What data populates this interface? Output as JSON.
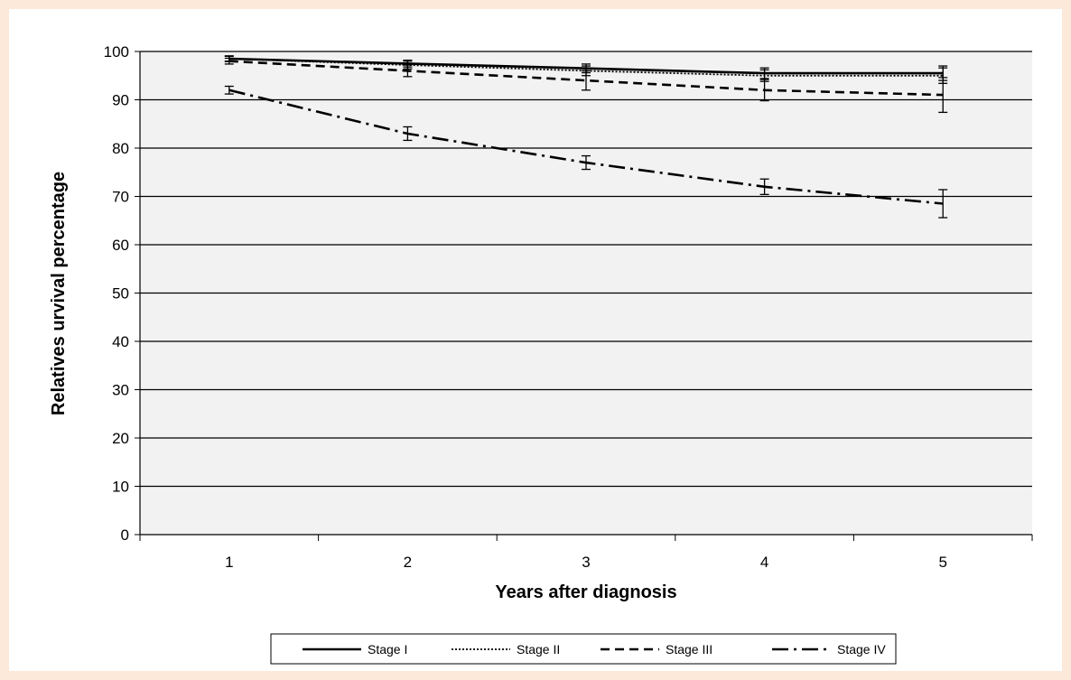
{
  "colors": {
    "page_background": "#fde9d9",
    "plot_area": "#f2f2f2",
    "ink": "#000000"
  },
  "chart_data": {
    "type": "line",
    "title": "",
    "xlabel": "Years after diagnosis",
    "ylabel": "Relatives urvival percentage",
    "x": [
      1,
      2,
      3,
      4,
      5
    ],
    "xlim": [
      0.5,
      5.5
    ],
    "ylim": [
      0,
      100
    ],
    "yticks": [
      0,
      10,
      20,
      30,
      40,
      50,
      60,
      70,
      80,
      90,
      100
    ],
    "grid": "horizontal",
    "legend_position": "bottom",
    "series": [
      {
        "name": "Stage I",
        "style": "solid",
        "values": [
          98.5,
          97.5,
          96.5,
          95.5,
          95.5
        ],
        "error_low": [
          98.0,
          96.8,
          95.6,
          94.4,
          94.0
        ],
        "error_high": [
          99.0,
          98.2,
          97.4,
          96.6,
          97.0
        ]
      },
      {
        "name": "Stage II",
        "style": "dotted",
        "values": [
          98.5,
          97.2,
          96.0,
          95.0,
          95.0
        ],
        "error_low": [
          97.9,
          96.4,
          95.0,
          93.8,
          93.4
        ],
        "error_high": [
          99.1,
          98.0,
          97.0,
          96.2,
          96.6
        ]
      },
      {
        "name": "Stage III",
        "style": "dashed",
        "values": [
          98.0,
          96.0,
          94.0,
          92.0,
          91.0
        ],
        "error_low": [
          97.4,
          94.8,
          92.0,
          89.8,
          87.4
        ],
        "error_high": [
          98.6,
          97.2,
          96.0,
          94.2,
          94.6
        ]
      },
      {
        "name": "Stage IV",
        "style": "dashdot",
        "values": [
          92.0,
          83.0,
          77.0,
          72.0,
          68.5
        ],
        "error_low": [
          91.2,
          81.6,
          75.6,
          70.4,
          65.6
        ],
        "error_high": [
          92.8,
          84.4,
          78.4,
          73.6,
          71.4
        ]
      }
    ]
  }
}
